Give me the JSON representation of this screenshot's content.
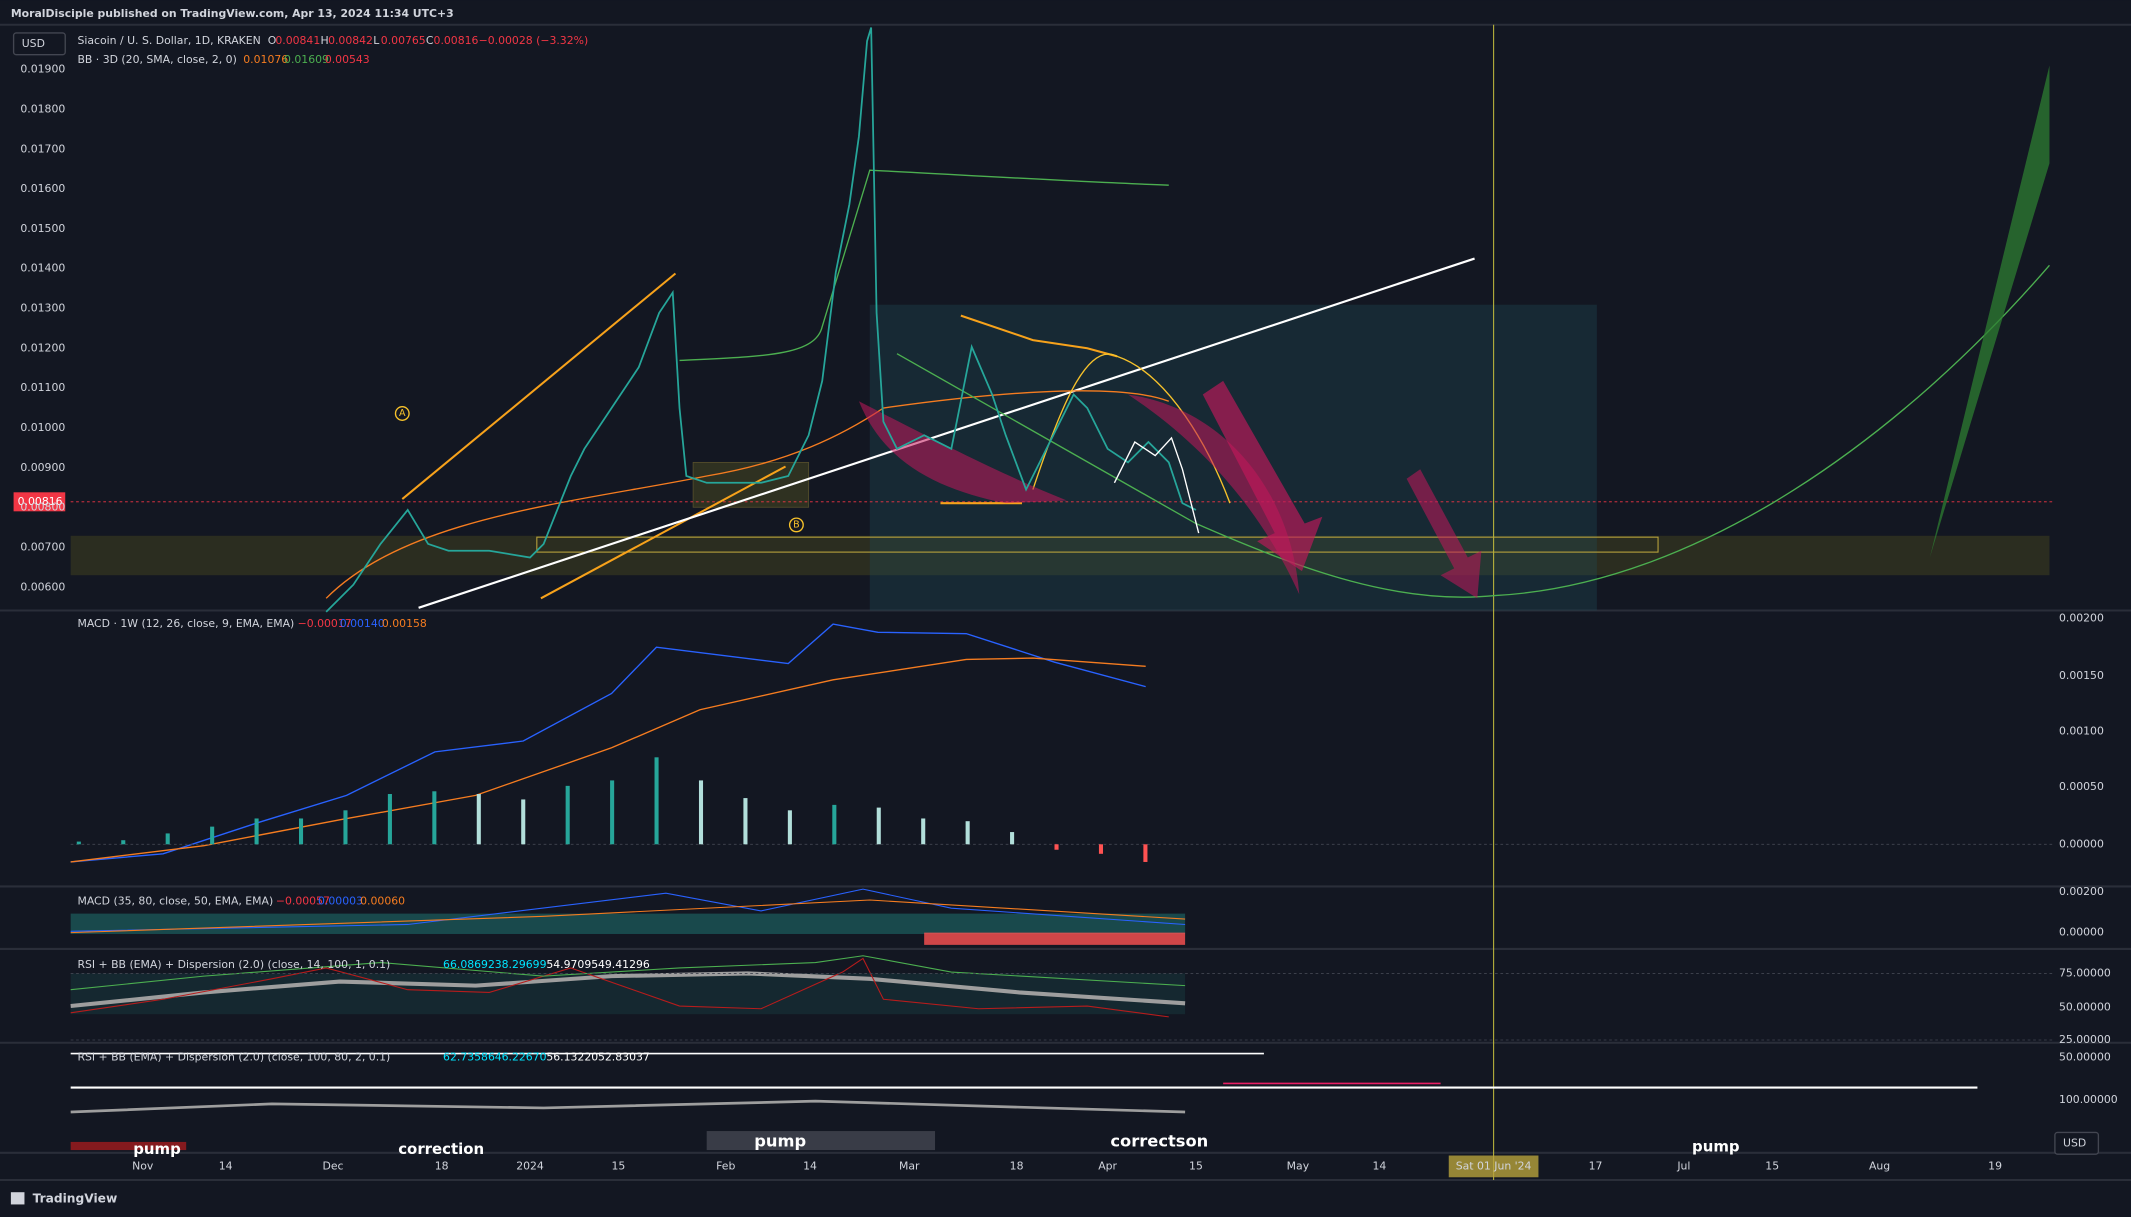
{
  "header": {
    "publisher": "MoralDisciple published on TradingView.com, Apr 13, 2024 11:34 UTC+3",
    "currency": "USD"
  },
  "main_pane": {
    "symbol": "Siacoin / U. S. Dollar, 1D, KRAKEN",
    "ohlc": [
      "O",
      "0.00841",
      "H",
      "0.00842",
      "L",
      "0.00765",
      "C",
      "0.00816",
      "−0.00028 (−3.32%)"
    ],
    "bb": {
      "label": "BB · 3D (20, SMA, close, 2, 0)",
      "values": [
        "0.01076",
        "0.01609",
        "0.00543"
      ]
    },
    "price_ticks": [
      "0.01900",
      "0.01800",
      "0.01700",
      "0.01600",
      "0.01500",
      "0.01400",
      "0.01300",
      "0.01200",
      "0.01100",
      "0.01000",
      "0.00900",
      "0.00800",
      "0.00700",
      "0.00600"
    ],
    "last_price": "0.00816",
    "markers": [
      "A",
      "B"
    ]
  },
  "macd_weekly": {
    "label": "MACD · 1W (12, 26, close, 9, EMA, EMA)",
    "values": [
      "−0.00017",
      "0.00140",
      "0.00158"
    ],
    "ticks": [
      "0.00200",
      "0.00150",
      "0.00100",
      "0.00050",
      "0.00000"
    ]
  },
  "macd_daily": {
    "label": "MACD (35, 80, close, 50, EMA, EMA)",
    "values": [
      "−0.00057",
      "0.00003",
      "0.00060"
    ],
    "ticks": [
      "0.00200",
      "0.00000"
    ]
  },
  "rsi_1": {
    "label": "RSI + BB (EMA) + Dispersion (2.0) (close, 14, 100, 1, 0.1)",
    "values": [
      "66.08692",
      "38.29699",
      "54.97095",
      "49.41296"
    ],
    "ticks": [
      "75.00000",
      "50.00000",
      "25.00000"
    ]
  },
  "rsi_2": {
    "label": "RSI + BB (EMA) + Dispersion (2.0) (close, 100, 80, 2, 0.1)",
    "values": [
      "62.73586",
      "46.22670",
      "56.13220",
      "52.83037"
    ],
    "ticks": [
      "50.00000",
      "100.00000"
    ]
  },
  "annotations": [
    "pump",
    "correction",
    "pump",
    "correctson",
    "pump"
  ],
  "time_axis": [
    "Nov",
    "14",
    "Dec",
    "18",
    "2024",
    "15",
    "Feb",
    "14",
    "Mar",
    "18",
    "Apr",
    "15",
    "May",
    "14",
    "Sat 01 Jun '24",
    "17",
    "Jul",
    "15",
    "Aug",
    "19"
  ],
  "footer": {
    "currency": "USD",
    "brand": "TradingView"
  }
}
